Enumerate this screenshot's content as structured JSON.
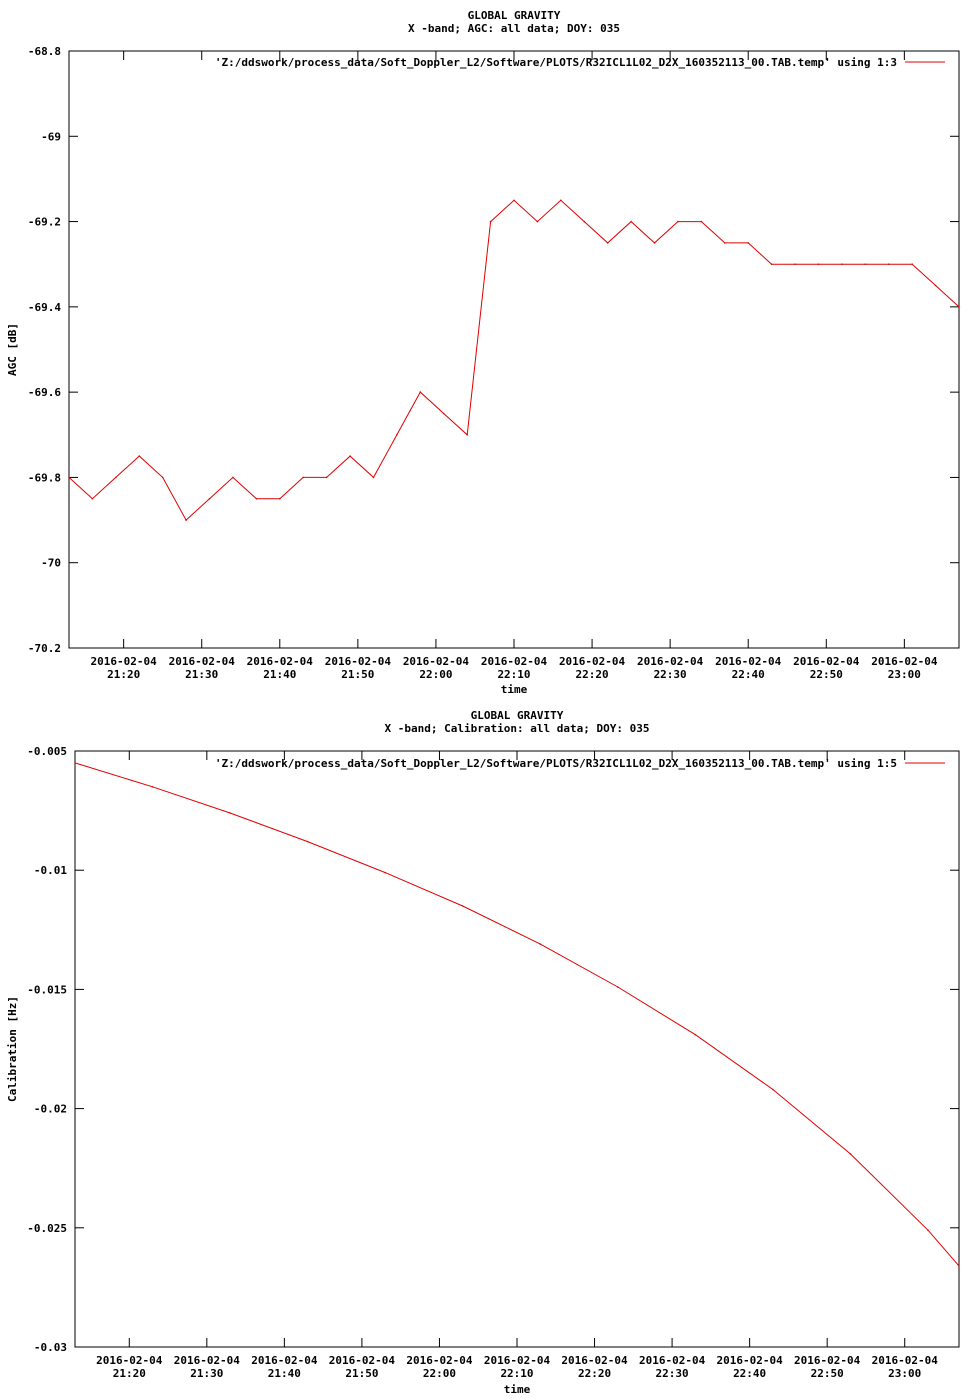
{
  "chart_data": [
    {
      "type": "line",
      "title": "GLOBAL GRAVITY",
      "subtitle": "X -band; AGC: all data; DOY: 035",
      "xlabel": "time",
      "ylabel": "AGC [dB]",
      "ylim": [
        -70.2,
        -68.8
      ],
      "y_ticks": [
        -68.8,
        -69,
        -69.2,
        -69.4,
        -69.6,
        -69.8,
        -70,
        -70.2
      ],
      "y_tick_labels": [
        "-68.8",
        "-69",
        "-69.2",
        "-69.4",
        "-69.6",
        "-69.8",
        "-70",
        "-70.2"
      ],
      "x_range": [
        "2016-02-04 21:13",
        "2016-02-04 23:07"
      ],
      "x_tick_dates": [
        "2016-02-04",
        "2016-02-04",
        "2016-02-04",
        "2016-02-04",
        "2016-02-04",
        "2016-02-04",
        "2016-02-04",
        "2016-02-04",
        "2016-02-04",
        "2016-02-04",
        "2016-02-04"
      ],
      "x_tick_times": [
        "21:20",
        "21:30",
        "21:40",
        "21:50",
        "22:00",
        "22:10",
        "22:20",
        "22:30",
        "22:40",
        "22:50",
        "23:00"
      ],
      "legend": "'Z:/ddswork/process_data/Soft_Doppler_L2/Software/PLOTS/R32ICL1L02_D2X_160352113_00.TAB.temp' using 1:3",
      "legend_position": "top-right",
      "grid": false,
      "color": "#e00000",
      "series": [
        {
          "x": [
            "21:13",
            "21:16",
            "21:19",
            "21:22",
            "21:25",
            "21:28",
            "21:31",
            "21:34",
            "21:37",
            "21:40",
            "21:43",
            "21:46",
            "21:49",
            "21:52",
            "21:55",
            "21:58",
            "22:01",
            "22:04",
            "22:07",
            "22:10",
            "22:13",
            "22:16",
            "22:19",
            "22:22",
            "22:25",
            "22:28",
            "22:31",
            "22:34",
            "22:37",
            "22:40",
            "22:43",
            "22:46",
            "22:49",
            "22:52",
            "22:55",
            "22:58",
            "23:01",
            "23:04",
            "23:07"
          ],
          "y": [
            -69.8,
            -69.85,
            -69.8,
            -69.75,
            -69.8,
            -69.9,
            -69.85,
            -69.8,
            -69.85,
            -69.85,
            -69.8,
            -69.8,
            -69.75,
            -69.8,
            -69.7,
            -69.6,
            -69.65,
            -69.7,
            -69.2,
            -69.15,
            -69.2,
            -69.15,
            -69.2,
            -69.25,
            -69.2,
            -69.25,
            -69.2,
            -69.2,
            -69.25,
            -69.25,
            -69.3,
            -69.3,
            -69.3,
            -69.3,
            -69.3,
            -69.3,
            -69.3,
            -69.35,
            -69.4
          ]
        }
      ]
    },
    {
      "type": "line",
      "title": "GLOBAL GRAVITY",
      "subtitle": "X -band; Calibration: all data; DOY: 035",
      "xlabel": "time",
      "ylabel": "Calibration [Hz]",
      "ylim": [
        -0.03,
        -0.005
      ],
      "y_ticks": [
        -0.005,
        -0.01,
        -0.015,
        -0.02,
        -0.025,
        -0.03
      ],
      "y_tick_labels": [
        "-0.005",
        "-0.01",
        "-0.015",
        "-0.02",
        "-0.025",
        "-0.03"
      ],
      "x_range": [
        "2016-02-04 21:13",
        "2016-02-04 23:07"
      ],
      "x_tick_dates": [
        "2016-02-04",
        "2016-02-04",
        "2016-02-04",
        "2016-02-04",
        "2016-02-04",
        "2016-02-04",
        "2016-02-04",
        "2016-02-04",
        "2016-02-04",
        "2016-02-04",
        "2016-02-04"
      ],
      "x_tick_times": [
        "21:20",
        "21:30",
        "21:40",
        "21:50",
        "22:00",
        "22:10",
        "22:20",
        "22:30",
        "22:40",
        "22:50",
        "23:00"
      ],
      "legend": "'Z:/ddswork/process_data/Soft_Doppler_L2/Software/PLOTS/R32ICL1L02_D2X_160352113_00.TAB.temp' using 1:5",
      "legend_position": "top-right",
      "grid": false,
      "color": "#e00000",
      "series": [
        {
          "x": [
            "21:13",
            "21:23",
            "21:33",
            "21:43",
            "21:53",
            "22:03",
            "22:13",
            "22:23",
            "22:33",
            "22:43",
            "22:53",
            "23:03",
            "23:07"
          ],
          "y": [
            -0.0055,
            -0.0065,
            -0.0076,
            -0.0088,
            -0.0101,
            -0.0115,
            -0.0131,
            -0.0149,
            -0.0169,
            -0.0192,
            -0.0219,
            -0.0251,
            -0.0266
          ]
        }
      ]
    }
  ]
}
